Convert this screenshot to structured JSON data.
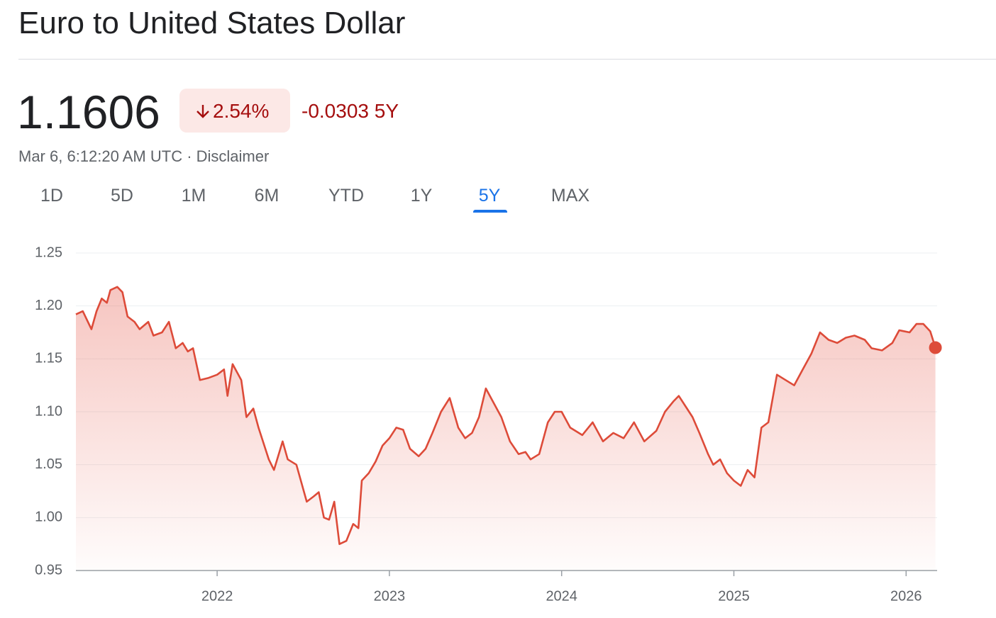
{
  "header": {
    "title": "Euro to United States Dollar",
    "price": "1.1606",
    "change_percent": "2.54%",
    "change": "-0.0303 5Y",
    "timestamp": "Mar 6, 6:12:20 AM UTC · Disclaimer",
    "tabs": [
      "1D",
      "5D",
      "1M",
      "6M",
      "YTD",
      "1Y",
      "5Y",
      "MAX"
    ],
    "selected_tab": 6
  },
  "chart_data": {
    "type": "line",
    "color": "#dd4b39",
    "grid": true,
    "xlim": [
      2021.18,
      2026.18
    ],
    "xticks": [
      2022,
      2023,
      2024,
      2025,
      2026
    ],
    "ylim": [
      0.95,
      1.25
    ],
    "yticks": [
      {
        "value": 0.95,
        "label": "0.95"
      },
      {
        "value": 1.0,
        "label": "1.00"
      },
      {
        "value": 1.05,
        "label": "1.05"
      },
      {
        "value": 1.1,
        "label": "1.10"
      },
      {
        "value": 1.15,
        "label": "1.15"
      },
      {
        "value": 1.2,
        "label": "1.20"
      },
      {
        "value": 1.25,
        "label": "1.25"
      }
    ],
    "x": [
      2021.18,
      2021.22,
      2021.27,
      2021.3,
      2021.33,
      2021.36,
      2021.38,
      2021.42,
      2021.45,
      2021.48,
      2021.52,
      2021.55,
      2021.6,
      2021.63,
      2021.68,
      2021.72,
      2021.76,
      2021.8,
      2021.83,
      2021.86,
      2021.9,
      2021.95,
      2022.0,
      2022.04,
      2022.06,
      2022.09,
      2022.14,
      2022.17,
      2022.21,
      2022.24,
      2022.3,
      2022.33,
      2022.38,
      2022.41,
      2022.46,
      2022.52,
      2022.56,
      2022.59,
      2022.62,
      2022.65,
      2022.68,
      2022.71,
      2022.75,
      2022.79,
      2022.82,
      2022.84,
      2022.88,
      2022.92,
      2022.96,
      2023.0,
      2023.04,
      2023.08,
      2023.12,
      2023.17,
      2023.21,
      2023.25,
      2023.3,
      2023.35,
      2023.4,
      2023.44,
      2023.48,
      2023.52,
      2023.56,
      2023.6,
      2023.65,
      2023.7,
      2023.75,
      2023.79,
      2023.82,
      2023.87,
      2023.92,
      2023.96,
      2024.0,
      2024.05,
      2024.12,
      2024.18,
      2024.24,
      2024.3,
      2024.36,
      2024.42,
      2024.48,
      2024.55,
      2024.6,
      2024.65,
      2024.68,
      2024.72,
      2024.76,
      2024.8,
      2024.85,
      2024.88,
      2024.92,
      2024.96,
      2025.0,
      2025.04,
      2025.08,
      2025.12,
      2025.16,
      2025.2,
      2025.25,
      2025.3,
      2025.35,
      2025.4,
      2025.45,
      2025.5,
      2025.55,
      2025.6,
      2025.65,
      2025.7,
      2025.76,
      2025.8,
      2025.86,
      2025.92,
      2025.96,
      2026.02,
      2026.06,
      2026.1,
      2026.14,
      2026.17
    ],
    "values": [
      1.192,
      1.195,
      1.178,
      1.195,
      1.207,
      1.203,
      1.215,
      1.218,
      1.213,
      1.19,
      1.185,
      1.178,
      1.185,
      1.172,
      1.175,
      1.185,
      1.16,
      1.165,
      1.157,
      1.16,
      1.13,
      1.132,
      1.135,
      1.14,
      1.115,
      1.145,
      1.13,
      1.095,
      1.103,
      1.085,
      1.055,
      1.045,
      1.072,
      1.055,
      1.05,
      1.015,
      1.02,
      1.024,
      1.0,
      0.998,
      1.015,
      0.975,
      0.978,
      0.994,
      0.99,
      1.035,
      1.042,
      1.053,
      1.068,
      1.075,
      1.085,
      1.083,
      1.065,
      1.058,
      1.065,
      1.08,
      1.1,
      1.113,
      1.085,
      1.075,
      1.08,
      1.095,
      1.122,
      1.11,
      1.095,
      1.072,
      1.06,
      1.062,
      1.055,
      1.06,
      1.09,
      1.1,
      1.1,
      1.085,
      1.078,
      1.09,
      1.072,
      1.08,
      1.075,
      1.09,
      1.072,
      1.082,
      1.1,
      1.11,
      1.115,
      1.105,
      1.095,
      1.08,
      1.06,
      1.05,
      1.055,
      1.042,
      1.035,
      1.03,
      1.045,
      1.038,
      1.085,
      1.09,
      1.135,
      1.13,
      1.125,
      1.14,
      1.155,
      1.175,
      1.168,
      1.165,
      1.17,
      1.172,
      1.168,
      1.16,
      1.158,
      1.165,
      1.177,
      1.175,
      1.183,
      1.183,
      1.176,
      1.1606
    ]
  }
}
